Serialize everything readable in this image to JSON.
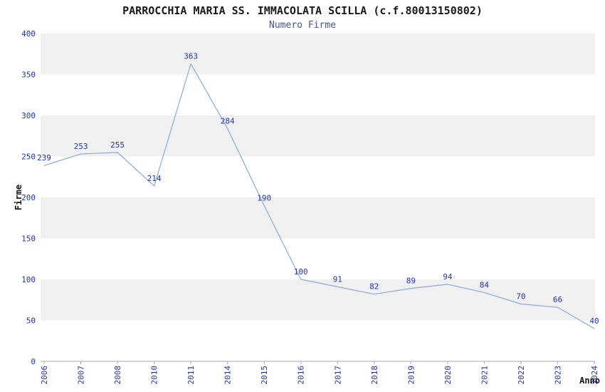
{
  "chart_data": {
    "type": "line",
    "title": "PARROCCHIA MARIA SS. IMMACOLATA SCILLA (c.f.80013150802)",
    "subtitle": "Numero Firme",
    "xlabel": "Anno",
    "ylabel": "Firme",
    "categories": [
      "2006",
      "2007",
      "2008",
      "2010",
      "2011",
      "2014",
      "2015",
      "2016",
      "2017",
      "2018",
      "2019",
      "2020",
      "2021",
      "2022",
      "2023",
      "2024"
    ],
    "values": [
      239,
      253,
      255,
      214,
      363,
      284,
      190,
      100,
      91,
      82,
      89,
      94,
      84,
      70,
      66,
      40
    ],
    "ylim": [
      0,
      400
    ],
    "ytick_step": 50,
    "ytick_labels": [
      "0",
      "50",
      "100",
      "150",
      "200",
      "250",
      "300",
      "350",
      "400"
    ],
    "legend": "none",
    "grid": "alternating-bands",
    "colors": {
      "line": "#88aadd",
      "value_label": "#2233bb",
      "tick_label": "#2233bb",
      "band": "#f0f0f0",
      "axis": "#aaaaaa",
      "title": "#1a1a1a",
      "subtitle": "#44549b",
      "axis_title": "#111111"
    }
  }
}
